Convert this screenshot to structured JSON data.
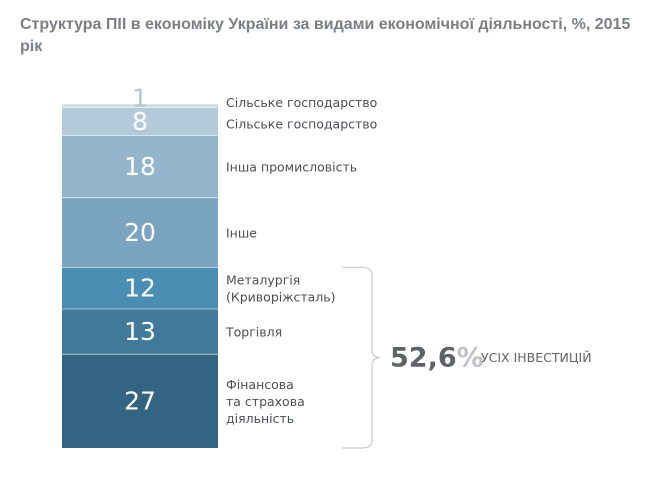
{
  "title": "Структура ПІІ в економіку України за видами економічної діяльності, %, 2015 рік",
  "chart_data": {
    "type": "bar",
    "subtype": "stacked-100",
    "categories": [
      "Сільське господарство",
      "Сільське господарство",
      "Інша промисловість",
      "Інше",
      "Металургія (Криворіжсталь)",
      "Торгівля",
      "Фінансова та страхова діяльність"
    ],
    "values": [
      1,
      8,
      18,
      20,
      12,
      13,
      27
    ],
    "value_labels": [
      "1",
      "8",
      "18",
      "20",
      "12",
      "13",
      "27"
    ],
    "label_lines": [
      [
        "Сільське господарство"
      ],
      [
        "Сільське господарство"
      ],
      [
        "Інша промисловість"
      ],
      [
        "Інше"
      ],
      [
        "Металургія",
        "(Криворіжсталь)"
      ],
      [
        "Торгівля"
      ],
      [
        "Фінансова",
        "та страхова",
        "діяльність"
      ]
    ],
    "colors": [
      "#cddde6",
      "#b3cadb",
      "#95b5cc",
      "#7ba4c0",
      "#4b8eb3",
      "#41799b",
      "#336582"
    ],
    "brace_range": [
      4,
      6
    ],
    "summary": {
      "value": "52,6",
      "unit": "%",
      "text": "УСІХ ІНВЕСТИЦІЙ"
    }
  }
}
